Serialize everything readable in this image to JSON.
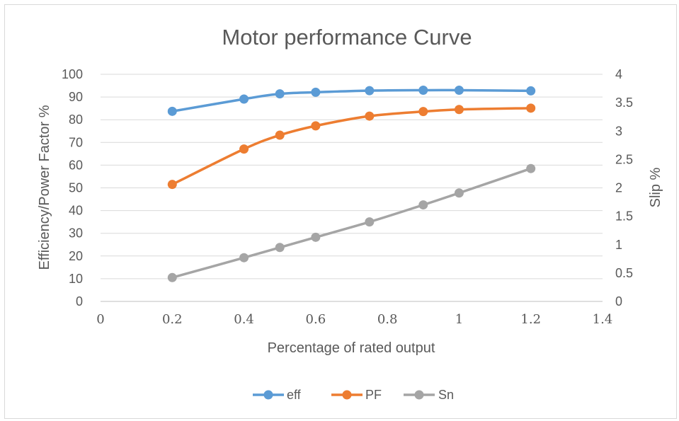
{
  "chart_data": {
    "type": "line",
    "title": "Motor performance Curve",
    "xlabel": "Percentage of rated output",
    "ylabel": "Efficiency/Power Factor %",
    "y2label": "Slip %",
    "xlim": [
      0,
      1.4
    ],
    "ylim": [
      0,
      100
    ],
    "y2lim": [
      0,
      4
    ],
    "x_ticks": [
      "0",
      "0.2",
      "0.4",
      "0.6",
      "0.8",
      "1",
      "1.2",
      "1.4"
    ],
    "y_ticks": [
      "0",
      "10",
      "20",
      "30",
      "40",
      "50",
      "60",
      "70",
      "80",
      "90",
      "100"
    ],
    "y2_ticks": [
      "0",
      "0.5",
      "1",
      "1.5",
      "2",
      "2.5",
      "3",
      "3.5",
      "4"
    ],
    "grid": "horizontal",
    "legend_position": "bottom",
    "x": [
      0.2,
      0.4,
      0.5,
      0.6,
      0.75,
      0.9,
      1.0,
      1.2
    ],
    "series": [
      {
        "name": "eff",
        "axis": "left",
        "color": "#5b9bd5",
        "values": [
          83.7,
          89.1,
          91.4,
          92.1,
          92.8,
          93.0,
          93.0,
          92.7
        ]
      },
      {
        "name": "PF",
        "axis": "left",
        "color": "#ed7d31",
        "values": [
          51.5,
          67.1,
          73.2,
          77.3,
          81.6,
          83.6,
          84.5,
          85.1
        ]
      },
      {
        "name": "Sn",
        "axis": "right",
        "color": "#a5a5a5",
        "values": [
          0.42,
          0.77,
          0.95,
          1.13,
          1.4,
          1.7,
          1.91,
          2.34
        ]
      }
    ]
  }
}
